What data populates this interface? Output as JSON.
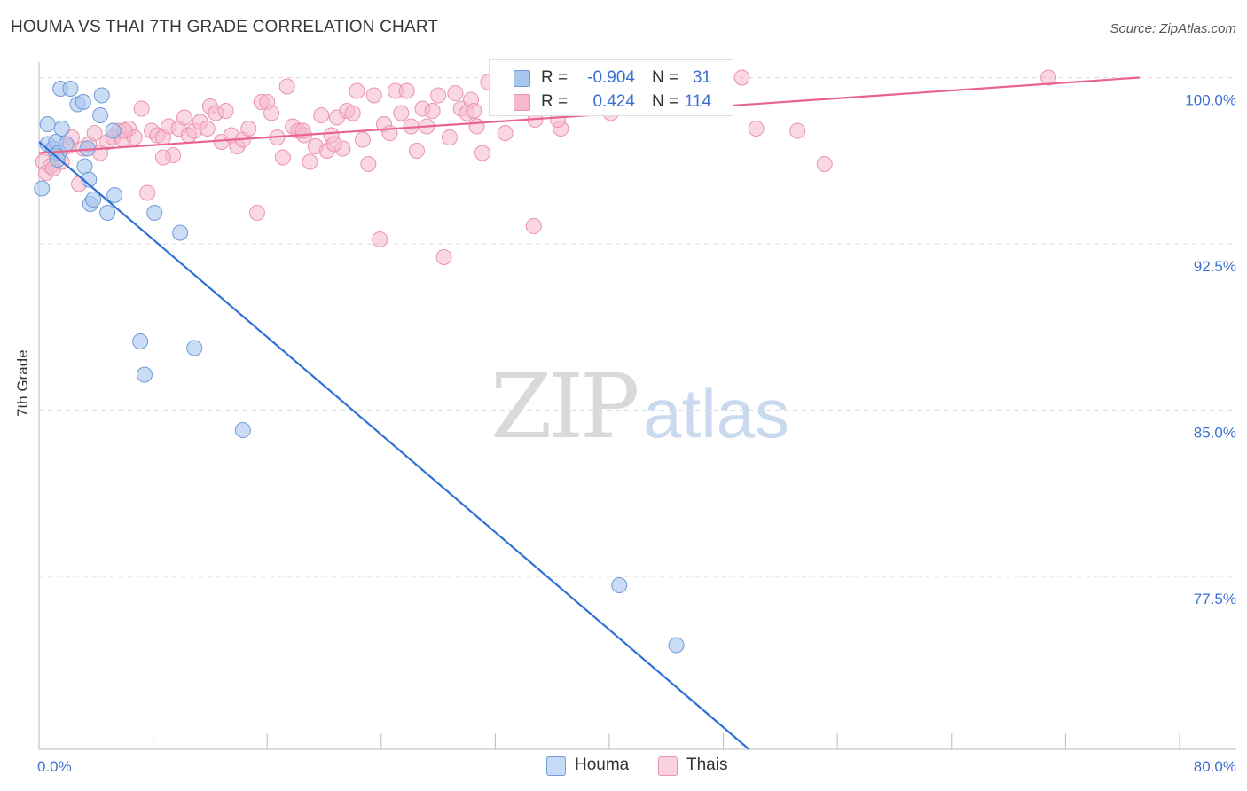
{
  "title": "HOUMA VS THAI 7TH GRADE CORRELATION CHART",
  "source": "Source: ZipAtlas.com",
  "watermark": {
    "zip": "ZIP",
    "atlas": "atlas"
  },
  "legend": {
    "rows": [
      {
        "r_label": "R =",
        "r_value": "-0.904",
        "n_label": "N =",
        "n_value": "31",
        "color": "#a9c6ef"
      },
      {
        "r_label": "R =",
        "r_value": "0.424",
        "n_label": "N =",
        "n_value": "114",
        "color": "#f6b8cc"
      }
    ]
  },
  "bottom_legend": {
    "houma": "Houma",
    "thais": "Thais"
  },
  "colors": {
    "houma_fill": "#a9c6ef",
    "houma_stroke": "#6f9bd9",
    "houma_line": "#2f72d6",
    "thais_fill": "#f6b8cc",
    "thais_stroke": "#ea93b0",
    "thais_line": "#e9648c",
    "tick_label": "#3b6fd3",
    "grid": "#dcdcdc"
  },
  "chart_data": {
    "type": "scatter",
    "title": "HOUMA VS THAI 7TH GRADE CORRELATION CHART",
    "xlabel": "",
    "ylabel": "7th Grade",
    "xlim": [
      0,
      80
    ],
    "ylim": [
      69.7,
      100.7
    ],
    "x_tick_labels": [
      {
        "value": 0,
        "label": "0.0%"
      },
      {
        "value": 80,
        "label": "80.0%"
      }
    ],
    "y_tick_labels": [
      {
        "value": 100,
        "label": "100.0%"
      },
      {
        "value": 92.5,
        "label": "92.5%"
      },
      {
        "value": 85,
        "label": "85.0%"
      },
      {
        "value": 77.5,
        "label": "77.5%"
      }
    ],
    "x_minor_ticks": [
      0,
      8,
      16,
      24,
      32,
      40,
      48,
      56,
      64,
      72,
      80
    ],
    "grid": true,
    "series": [
      {
        "name": "Houma",
        "trend": {
          "x0": 0,
          "y0": 97.1,
          "x1": 49.8,
          "y1": 69.7
        },
        "points": [
          [
            0.2,
            95.0
          ],
          [
            0.6,
            97.0
          ],
          [
            0.6,
            97.9
          ],
          [
            1.0,
            96.8
          ],
          [
            1.2,
            97.1
          ],
          [
            1.4,
            96.6
          ],
          [
            1.5,
            99.5
          ],
          [
            1.6,
            97.7
          ],
          [
            1.9,
            97.0
          ],
          [
            2.2,
            99.5
          ],
          [
            2.7,
            98.8
          ],
          [
            3.1,
            98.9
          ],
          [
            3.2,
            96.0
          ],
          [
            3.5,
            95.4
          ],
          [
            3.4,
            96.8
          ],
          [
            3.6,
            94.3
          ],
          [
            3.8,
            94.5
          ],
          [
            4.3,
            98.3
          ],
          [
            4.4,
            99.2
          ],
          [
            4.8,
            93.9
          ],
          [
            5.3,
            94.7
          ],
          [
            5.2,
            97.6
          ],
          [
            7.1,
            88.1
          ],
          [
            7.4,
            86.6
          ],
          [
            8.1,
            93.9
          ],
          [
            9.9,
            93.0
          ],
          [
            10.9,
            87.8
          ],
          [
            14.3,
            84.1
          ],
          [
            40.7,
            77.1
          ],
          [
            44.7,
            74.4
          ],
          [
            1.3,
            96.3
          ]
        ]
      },
      {
        "name": "Thais",
        "trend": {
          "x0": 0,
          "y0": 96.6,
          "x1": 77.2,
          "y1": 100.0
        },
        "points": [
          [
            0.3,
            96.2
          ],
          [
            0.5,
            95.7
          ],
          [
            0.8,
            96.0
          ],
          [
            1.0,
            95.9
          ],
          [
            1.2,
            96.6
          ],
          [
            1.6,
            96.2
          ],
          [
            2.0,
            96.9
          ],
          [
            2.3,
            97.3
          ],
          [
            2.8,
            95.2
          ],
          [
            3.1,
            96.8
          ],
          [
            3.5,
            97.0
          ],
          [
            3.9,
            97.5
          ],
          [
            4.3,
            96.6
          ],
          [
            4.8,
            97.1
          ],
          [
            5.2,
            97.3
          ],
          [
            5.6,
            97.6
          ],
          [
            5.9,
            97.2
          ],
          [
            6.3,
            97.7
          ],
          [
            6.7,
            97.3
          ],
          [
            7.2,
            98.6
          ],
          [
            7.6,
            94.8
          ],
          [
            7.9,
            97.6
          ],
          [
            8.3,
            97.4
          ],
          [
            8.7,
            97.3
          ],
          [
            9.1,
            97.8
          ],
          [
            9.4,
            96.5
          ],
          [
            9.8,
            97.7
          ],
          [
            10.2,
            98.2
          ],
          [
            10.5,
            97.4
          ],
          [
            10.9,
            97.6
          ],
          [
            11.3,
            98.0
          ],
          [
            11.8,
            97.7
          ],
          [
            12.0,
            98.7
          ],
          [
            12.4,
            98.4
          ],
          [
            12.8,
            97.1
          ],
          [
            13.1,
            98.5
          ],
          [
            13.5,
            97.4
          ],
          [
            13.9,
            96.9
          ],
          [
            14.3,
            97.2
          ],
          [
            14.7,
            97.7
          ],
          [
            15.3,
            93.9
          ],
          [
            15.6,
            98.9
          ],
          [
            16.0,
            98.9
          ],
          [
            16.3,
            98.4
          ],
          [
            16.7,
            97.3
          ],
          [
            17.1,
            96.4
          ],
          [
            17.4,
            99.6
          ],
          [
            17.8,
            97.8
          ],
          [
            18.2,
            97.6
          ],
          [
            18.6,
            97.4
          ],
          [
            19.0,
            96.2
          ],
          [
            19.4,
            96.9
          ],
          [
            19.8,
            98.3
          ],
          [
            20.2,
            96.7
          ],
          [
            20.5,
            97.4
          ],
          [
            20.9,
            98.2
          ],
          [
            21.3,
            96.8
          ],
          [
            21.6,
            98.5
          ],
          [
            22.0,
            98.4
          ],
          [
            22.3,
            99.4
          ],
          [
            22.7,
            97.2
          ],
          [
            23.1,
            96.1
          ],
          [
            23.5,
            99.2
          ],
          [
            23.9,
            92.7
          ],
          [
            24.2,
            97.9
          ],
          [
            24.6,
            97.5
          ],
          [
            25.0,
            99.4
          ],
          [
            25.4,
            98.4
          ],
          [
            25.8,
            99.4
          ],
          [
            26.1,
            97.8
          ],
          [
            26.5,
            96.7
          ],
          [
            26.9,
            98.6
          ],
          [
            27.2,
            97.8
          ],
          [
            27.6,
            98.5
          ],
          [
            28.0,
            99.2
          ],
          [
            28.4,
            91.9
          ],
          [
            28.8,
            97.3
          ],
          [
            29.2,
            99.3
          ],
          [
            29.6,
            98.6
          ],
          [
            30.0,
            98.4
          ],
          [
            30.3,
            99.0
          ],
          [
            30.7,
            97.8
          ],
          [
            31.1,
            96.6
          ],
          [
            31.5,
            99.8
          ],
          [
            32.3,
            99.9
          ],
          [
            32.7,
            97.5
          ],
          [
            33.1,
            99.3
          ],
          [
            34.1,
            99.0
          ],
          [
            34.7,
            93.3
          ],
          [
            34.8,
            98.1
          ],
          [
            35.1,
            99.7
          ],
          [
            35.5,
            99.4
          ],
          [
            36.6,
            97.7
          ],
          [
            37.0,
            99.6
          ],
          [
            37.5,
            99.9
          ],
          [
            38.5,
            99.9
          ],
          [
            40.1,
            98.4
          ],
          [
            41.7,
            99.6
          ],
          [
            44.8,
            100.0
          ],
          [
            45.5,
            99.5
          ],
          [
            46.7,
            99.8
          ],
          [
            47.2,
            99.4
          ],
          [
            47.7,
            99.7
          ],
          [
            49.3,
            100.0
          ],
          [
            50.3,
            97.7
          ],
          [
            53.2,
            97.6
          ],
          [
            55.1,
            96.1
          ],
          [
            70.8,
            100.0
          ],
          [
            36.4,
            98.1
          ],
          [
            30.5,
            98.5
          ],
          [
            20.7,
            97.0
          ],
          [
            18.5,
            97.6
          ],
          [
            8.7,
            96.4
          ],
          [
            6.0,
            97.6
          ]
        ]
      }
    ]
  }
}
